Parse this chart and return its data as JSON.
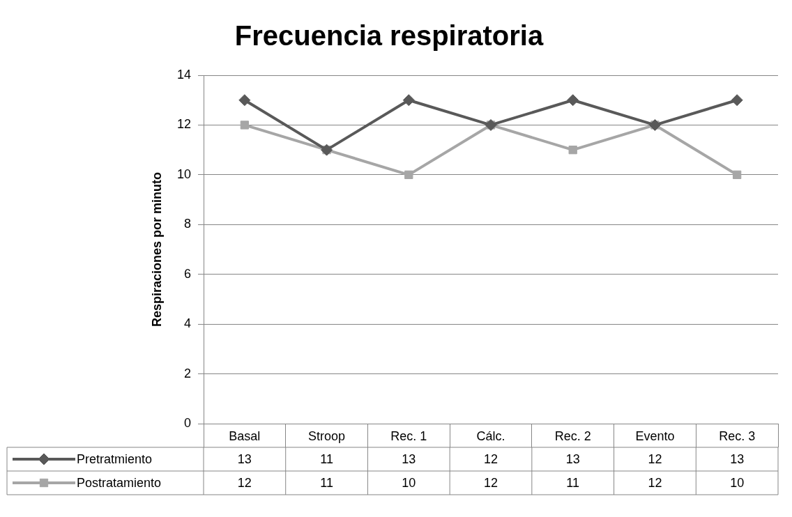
{
  "chart_data": {
    "type": "line",
    "title": "Frecuencia respiratoria",
    "ylabel": "Respiraciones por minuto",
    "categories": [
      "Basal",
      "Stroop",
      "Rec. 1",
      "Cálc.",
      "Rec. 2",
      "Evento",
      "Rec. 3"
    ],
    "series": [
      {
        "name": "Pretratmiento",
        "color": "#595959",
        "marker": "diamond",
        "values": [
          13,
          11,
          13,
          12,
          13,
          12,
          13
        ]
      },
      {
        "name": "Postratamiento",
        "color": "#a6a6a6",
        "marker": "square",
        "values": [
          12,
          11,
          10,
          12,
          11,
          12,
          10
        ]
      }
    ],
    "ylim": [
      0,
      14
    ],
    "yticks": [
      0,
      2,
      4,
      6,
      8,
      10,
      12,
      14
    ],
    "grid": "y",
    "legend": "bottom",
    "data_labels": true,
    "line_style": "solid"
  }
}
